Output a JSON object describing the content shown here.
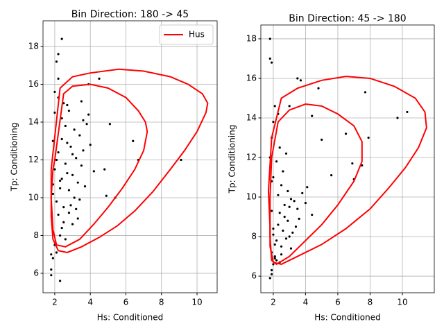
{
  "chart_data": [
    {
      "type": "scatter",
      "title": "Bin Direction: 180 -> 45",
      "x_label": "Hs: Conditioned",
      "y_label": "Tp: Conditioning",
      "xlim": [
        1.34,
        11.13
      ],
      "ylim": [
        4.97,
        19.36
      ],
      "xticks": [
        2,
        4,
        6,
        8,
        10
      ],
      "yticks": [
        6,
        8,
        10,
        12,
        14,
        16,
        18
      ],
      "grid": true,
      "legend": "upper right",
      "points": {
        "color": "#000000",
        "x": [
          1.9,
          2.0,
          2.1,
          2.2,
          2.3,
          2.4,
          2.5,
          2.6,
          2.7,
          2.8,
          2.9,
          3.0,
          3.1,
          3.2,
          3.3,
          3.4,
          3.5,
          3.6,
          1.9,
          2.0,
          2.2,
          2.4,
          2.6,
          2.8,
          3.0,
          3.2,
          3.4,
          3.6,
          3.8,
          1.8,
          2.1,
          2.3,
          2.5,
          2.7,
          2.9,
          3.1,
          3.3,
          1.9,
          2.0,
          2.2,
          2.4,
          2.6,
          2.8,
          3.0,
          1.8,
          1.9,
          2.1,
          2.3,
          2.5,
          2.7,
          2.0,
          2.2,
          1.8,
          1.9,
          2.4,
          3.5,
          3.7,
          4.0,
          4.2,
          3.9,
          2.4,
          2.2,
          2.1,
          4.5,
          3.9,
          5.1,
          6.4,
          9.1,
          6.7,
          5.4,
          4.9,
          4.8,
          2.3
        ],
        "y": [
          10.2,
          11.5,
          9.8,
          12.4,
          10.9,
          13.1,
          8.7,
          11.8,
          12.9,
          10.4,
          9.6,
          11.2,
          13.6,
          12.1,
          10.8,
          9.9,
          11.7,
          12.5,
          8.2,
          7.5,
          9.1,
          14.2,
          13.8,
          14.6,
          8.6,
          9.4,
          13.3,
          14.1,
          13.9,
          6.2,
          7.1,
          8.0,
          15.0,
          14.9,
          12.7,
          10.0,
          8.9,
          13.0,
          14.5,
          15.3,
          11.0,
          7.8,
          9.2,
          12.3,
          5.9,
          6.8,
          12.0,
          10.5,
          9.5,
          11.3,
          15.6,
          16.3,
          7.0,
          10.7,
          8.4,
          15.1,
          10.6,
          12.8,
          11.4,
          14.4,
          18.4,
          17.6,
          17.2,
          16.3,
          16.0,
          13.9,
          13.0,
          12.0,
          12.0,
          10.0,
          10.1,
          11.5,
          5.6
        ]
      },
      "lines": [
        {
          "name": "Hus",
          "color": "#ff0000",
          "x": [
            1.8,
            2.3,
            3.0,
            4.0,
            5.6,
            7.0,
            8.5,
            9.5,
            10.3,
            10.6,
            10.5,
            10.0,
            9.3,
            8.5,
            7.5,
            6.5,
            5.5,
            4.5,
            3.5,
            2.7,
            2.2,
            1.9,
            1.8,
            1.8,
            1.8
          ],
          "y": [
            11.5,
            15.8,
            16.4,
            16.6,
            16.8,
            16.7,
            16.4,
            16.0,
            15.5,
            15.0,
            14.5,
            13.5,
            12.5,
            11.5,
            10.3,
            9.3,
            8.5,
            7.9,
            7.4,
            7.1,
            7.2,
            7.8,
            9.0,
            10.5,
            11.5
          ]
        },
        {
          "color": "#ff0000",
          "x": [
            2.0,
            2.5,
            3.0,
            4.0,
            5.0,
            6.0,
            6.7,
            7.1,
            7.2,
            7.0,
            6.5,
            5.8,
            5.0,
            4.2,
            3.4,
            2.6,
            2.1,
            1.9,
            1.8,
            1.9,
            2.0
          ],
          "y": [
            12.0,
            15.5,
            15.9,
            16.0,
            15.8,
            15.3,
            14.6,
            14.0,
            13.5,
            12.5,
            11.5,
            10.5,
            9.5,
            8.6,
            7.8,
            7.4,
            7.5,
            8.3,
            10.0,
            11.5,
            12.0
          ]
        }
      ]
    },
    {
      "type": "scatter",
      "title": "Bin Direction: 45 -> 180",
      "x_label": "Hs: Conditioned",
      "y_label": "Tp: Conditioning",
      "xlim": [
        1.23,
        11.98
      ],
      "ylim": [
        5.16,
        18.7
      ],
      "xticks": [
        2,
        4,
        6,
        8,
        10
      ],
      "yticks": [
        6,
        8,
        10,
        12,
        14,
        16,
        18
      ],
      "grid": true,
      "points": {
        "color": "#000000",
        "x": [
          1.9,
          2.0,
          2.1,
          2.2,
          2.3,
          2.4,
          2.5,
          2.6,
          2.7,
          2.8,
          2.9,
          3.0,
          3.1,
          3.2,
          3.3,
          3.4,
          1.9,
          2.0,
          2.1,
          2.3,
          2.5,
          2.7,
          2.9,
          3.1,
          3.5,
          3.8,
          4.1,
          4.4,
          1.8,
          1.9,
          2.0,
          2.2,
          2.4,
          2.6,
          2.8,
          1.9,
          2.0,
          2.1,
          2.3,
          1.8,
          1.9,
          2.0,
          2.2,
          2.5,
          3.0,
          3.6,
          4.0,
          1.9,
          2.1,
          2.4,
          1.8,
          1.8,
          1.9,
          3.5,
          3.7,
          4.8,
          7.7,
          10.3,
          9.7,
          7.9,
          6.5,
          7.5,
          6.9,
          7.0,
          5.6,
          4.4,
          5.0,
          3.0
        ],
        "y": [
          7.2,
          8.1,
          6.9,
          7.8,
          8.6,
          9.2,
          7.5,
          8.3,
          9.0,
          7.9,
          8.8,
          9.5,
          7.4,
          8.2,
          9.8,
          8.5,
          6.3,
          6.6,
          7.0,
          10.1,
          10.6,
          9.6,
          10.3,
          9.9,
          9.4,
          10.2,
          10.5,
          9.1,
          5.9,
          6.1,
          11.0,
          11.8,
          12.5,
          11.3,
          12.2,
          13.0,
          13.8,
          14.6,
          14.2,
          12.0,
          9.3,
          8.4,
          6.8,
          7.1,
          8.0,
          8.9,
          9.7,
          10.8,
          7.6,
          6.7,
          18,
          17,
          16.8,
          16,
          15.9,
          15.5,
          15.3,
          14.3,
          14,
          13,
          13.2,
          11.6,
          11.7,
          10.9,
          11.1,
          14.1,
          12.9,
          14.6
        ]
      },
      "lines": [
        {
          "color": "#ff0000",
          "x": [
            1.7,
            1.9,
            2.5,
            3.5,
            5.0,
            6.5,
            8.0,
            9.5,
            10.8,
            11.4,
            11.5,
            11.0,
            10.2,
            9.2,
            8.0,
            6.5,
            5.0,
            3.5,
            2.5,
            2.0,
            1.8,
            1.8,
            1.7
          ],
          "y": [
            10.3,
            13.0,
            15.0,
            15.5,
            15.9,
            16.1,
            16.0,
            15.6,
            15.0,
            14.3,
            13.5,
            12.5,
            11.5,
            10.5,
            9.4,
            8.4,
            7.6,
            7.0,
            6.6,
            6.7,
            7.5,
            8.5,
            10.3
          ]
        },
        {
          "color": "#ff0000",
          "x": [
            1.9,
            2.3,
            3.0,
            4.0,
            5.0,
            6.0,
            7.0,
            7.5,
            7.5,
            7.0,
            6.0,
            5.0,
            4.0,
            3.0,
            2.2,
            1.9,
            1.8,
            1.8,
            1.9
          ],
          "y": [
            12.0,
            13.8,
            14.4,
            14.7,
            14.6,
            14.2,
            13.6,
            12.8,
            11.8,
            10.8,
            9.6,
            8.6,
            7.8,
            7.0,
            6.6,
            6.8,
            8.0,
            10.0,
            12.0
          ]
        }
      ]
    }
  ]
}
